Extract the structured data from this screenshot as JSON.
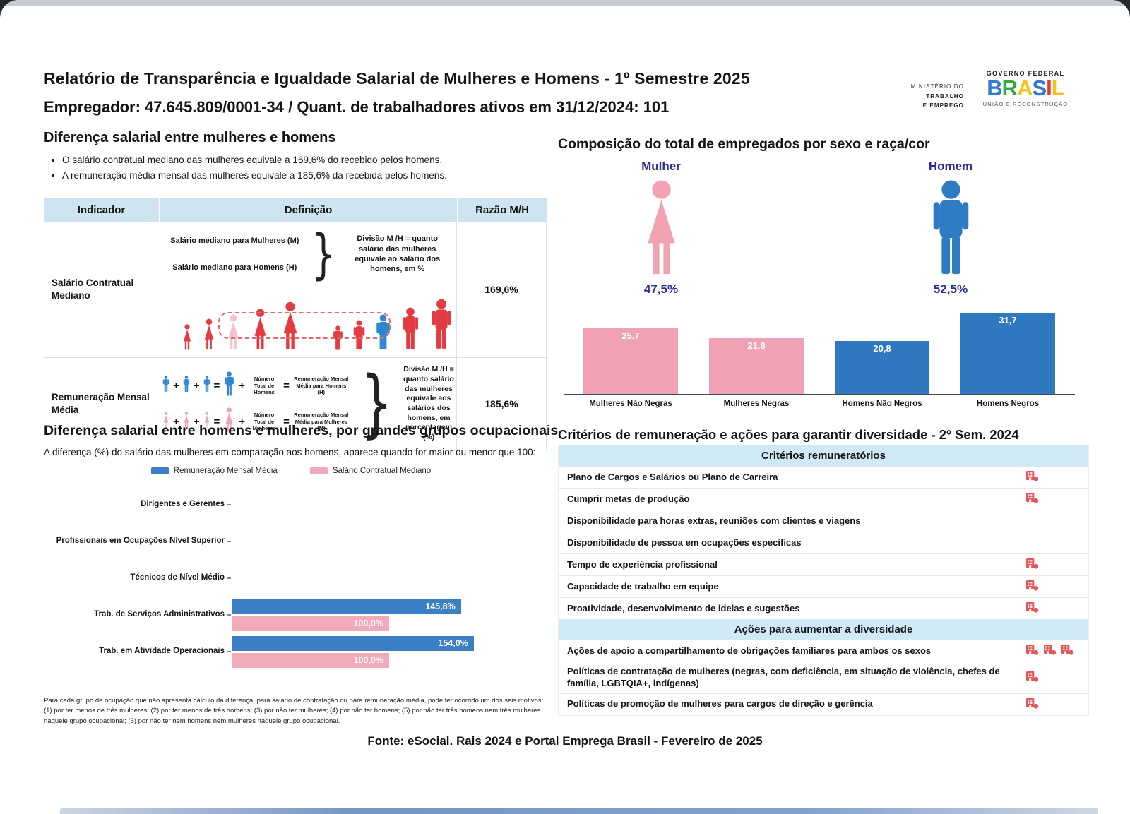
{
  "page": {
    "title": "Relatório de Transparência e Igualdade Salarial de Mulheres e Homens - 1º Semestre 2025",
    "subtitle": "Empregador: 47.645.809/0001-34    /    Quant. de trabalhadores ativos em 31/12/2024: 101",
    "footer": "Fonte: eSocial. Rais 2024 e Portal Emprega Brasil - Fevereiro de 2025"
  },
  "logos": {
    "ministry_lines": [
      "MINISTÉRIO DO",
      "TRABALHO",
      "E EMPREGO"
    ],
    "gov_top": "GOVERNO FEDERAL",
    "gov_name": "BRASIL",
    "gov_bottom": "UNIÃO E RECONSTRUÇÃO",
    "brasil_letter_colors": [
      "#2f7bd0",
      "#37a93c",
      "#f5c31d",
      "#2f7bd0",
      "#e2382e",
      "#f5c31d"
    ]
  },
  "colors": {
    "figure_red": "#e23b42",
    "highlight_pink": "#f6c0cc",
    "highlight_blue": "#2e86d1",
    "female_pink": "#f2a2b0",
    "male_blue": "#2e7bc4",
    "navy": "#2b2f8f",
    "table_header_blue": "#cfe4f1",
    "criteria_header_blue": "#cfe9f6",
    "icon_red": "#e8545a"
  },
  "salary_gap": {
    "title": "Diferença salarial entre mulheres e homens",
    "bullets": [
      "O salário contratual mediano das mulheres equivale a 169,6% do recebido pelos homens.",
      "A remuneração média mensal das mulheres equivale a 185,6% da recebida pelos homens."
    ],
    "table": {
      "headers": [
        "Indicador",
        "Definição",
        "Razão M/H"
      ],
      "rows": [
        {
          "indicator": "Salário Contratual Mediano",
          "def_line1": "Salário mediano para Mulheres (M)",
          "def_line2": "Salário mediano para Homens (H)",
          "def_note": "Divisão M /H = quanto salário das mulheres equivale ao salário dos homens, em %",
          "ratio": "169,6%"
        },
        {
          "indicator": "Remuneração Mensal Média",
          "men_count_label": "Número Total de Homens",
          "men_result_label": "Remuneração Mensal Média para Homens (H)",
          "women_count_label": "Número Total de Mulheres",
          "women_result_label": "Remuneração Mensal Média para Mulheres (M)",
          "sym_plus": "+",
          "sym_eq": "=",
          "def_note": "Divisão M /H = quanto salário das mulheres equivale aos salários dos homens, em porcentagem (%)",
          "ratio": "185,6%"
        }
      ]
    }
  },
  "composition": {
    "title": "Composição do total de empregados por sexo e raça/cor",
    "groups": [
      {
        "label": "Mulher",
        "pct": "47,5%",
        "icon": "person-female-icon"
      },
      {
        "label": "Homem",
        "pct": "52,5%",
        "icon": "person-male-icon"
      }
    ]
  },
  "occupational": {
    "title": "Diferença salarial entre homens e mulheres, por grandes grupos ocupacionais",
    "subtitle": "A diferença (%) do salário das mulheres em comparação aos homens, aparece quando for maior ou menor que 100:",
    "note": "Para cada grupo de ocupação que não apresenta cálculo da diferença, para salário de contratação ou para remuneração média, pode ter ocorrido um dos seis motivos: (1) por ter menos de três mulheres; (2) por ter menos de três homens; (3) por não ter mulheres; (4) por não ter homens; (5) por não ter três homens nem três mulheres naquele grupo ocupacional; (6) por não ter nem homens nem mulheres naquele grupo ocupacional."
  },
  "criteria": {
    "title": "Critérios de remuneração e ações para garantir diversidade - 2º Sem. 2024",
    "sections": [
      {
        "header": "Critérios remuneratórios",
        "rows": [
          {
            "label": "Plano de Cargos e Salários ou Plano de Carreira",
            "icons": 1
          },
          {
            "label": "Cumprir metas de produção",
            "icons": 1
          },
          {
            "label": "Disponibilidade para horas extras, reuniões com clientes e viagens",
            "icons": 0
          },
          {
            "label": "Disponibilidade de pessoa em ocupações específicas",
            "icons": 0
          },
          {
            "label": "Tempo de experiência profissional",
            "icons": 1
          },
          {
            "label": "Capacidade de trabalho em equipe",
            "icons": 1
          },
          {
            "label": "Proatividade, desenvolvimento de ideias e sugestões",
            "icons": 1
          }
        ]
      },
      {
        "header": "Ações para aumentar a diversidade",
        "rows": [
          {
            "label": "Ações de apoio a compartilhamento de obrigações familiares para ambos os sexos",
            "icons": 3
          },
          {
            "label": "Políticas de contratação de mulheres (negras, com deficiência, em situação de violência, chefes de família, LGBTQIA+, indígenas)",
            "icons": 1
          },
          {
            "label": "Políticas de promoção de mulheres para cargos de direção e gerência",
            "icons": 1
          }
        ]
      }
    ],
    "icon_name": "company-building-icon"
  },
  "chart_data": [
    {
      "type": "bar",
      "title": "Composição do total de empregados por sexo e raça/cor",
      "categories": [
        "Mulheres Não Negras",
        "Mulheres Negras",
        "Homens Não Negros",
        "Homens Negros"
      ],
      "values": [
        25.7,
        21.8,
        20.8,
        31.7
      ],
      "colors": [
        "#f0a1b4",
        "#f0a1b4",
        "#2e79c0",
        "#2e79c0"
      ],
      "ylim": [
        0,
        35
      ],
      "grid": false,
      "value_labels": "inside-top, white"
    },
    {
      "type": "bar",
      "orientation": "horizontal",
      "title": "Diferença salarial entre homens e mulheres, por grandes grupos ocupacionais",
      "categories": [
        "Dirigentes e Gerentes",
        "Profissionais em Ocupações Nível Superior",
        "Técnicos de Nível Médio",
        "Trab. de Serviços Administrativos",
        "Trab. em Atividade Operacionais"
      ],
      "series": [
        {
          "name": "Remuneração Mensal Média",
          "color": "#3b7fc4",
          "values": [
            null,
            null,
            null,
            145.8,
            154.0
          ]
        },
        {
          "name": "Salário Contratual Mediano",
          "color": "#f2aabb",
          "values": [
            null,
            null,
            null,
            100.0,
            100.0
          ]
        }
      ],
      "xlim": [
        0,
        170
      ],
      "legend_position": "top",
      "grid": false,
      "value_labels": "inside-end, white, percent"
    }
  ]
}
